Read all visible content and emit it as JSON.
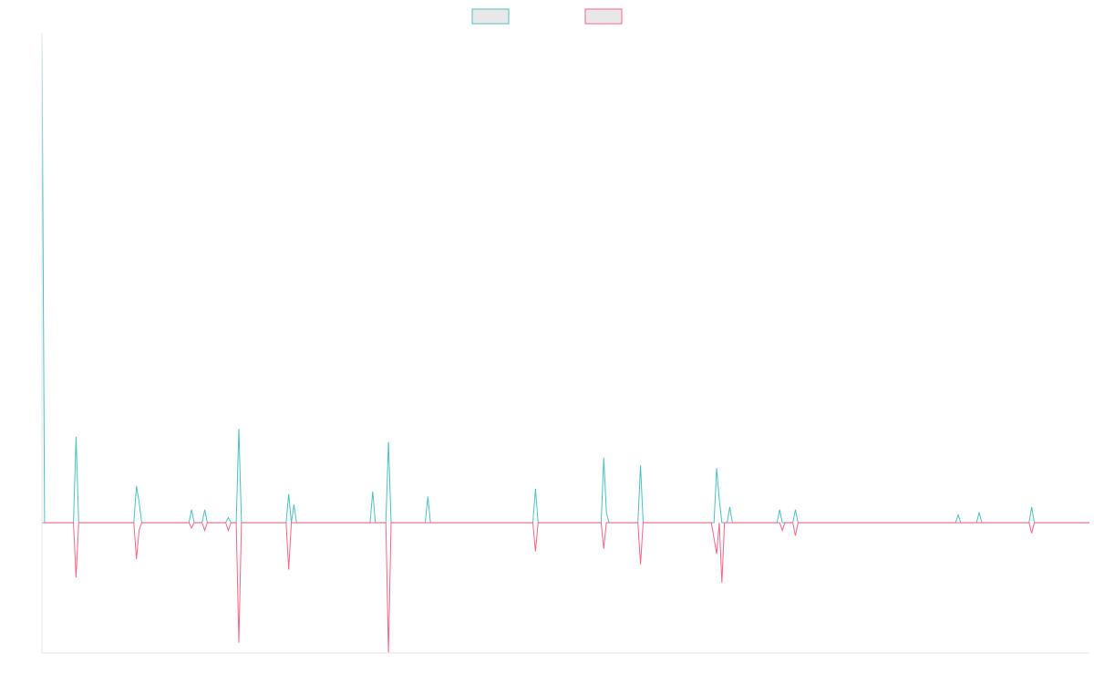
{
  "chart_data": {
    "type": "line",
    "title": "",
    "xlabel": "",
    "ylabel": "",
    "legend_position": "top-center",
    "grid": false,
    "n_points": 400,
    "ylim": [
      -50,
      188
    ],
    "series": [
      {
        "name": "",
        "color": "#4bc0c0",
        "fill": "#e8e8e8",
        "sparse": [
          [
            0,
            188
          ],
          [
            1,
            0
          ],
          [
            13,
            33
          ],
          [
            14,
            0
          ],
          [
            36,
            14
          ],
          [
            37,
            8
          ],
          [
            38,
            0
          ],
          [
            57,
            5
          ],
          [
            58,
            0
          ],
          [
            62,
            5
          ],
          [
            63,
            0
          ],
          [
            71,
            2
          ],
          [
            72,
            0
          ],
          [
            75,
            36
          ],
          [
            76,
            0
          ],
          [
            94,
            11
          ],
          [
            95,
            0
          ],
          [
            96,
            7
          ],
          [
            97,
            0
          ],
          [
            126,
            12
          ],
          [
            127,
            0
          ],
          [
            132,
            31
          ],
          [
            133,
            0
          ],
          [
            147,
            10
          ],
          [
            148,
            0
          ],
          [
            188,
            13
          ],
          [
            189,
            0
          ],
          [
            214,
            25
          ],
          [
            215,
            4
          ],
          [
            216,
            0
          ],
          [
            228,
            22
          ],
          [
            229,
            0
          ],
          [
            257,
            21
          ],
          [
            258,
            9
          ],
          [
            259,
            0
          ],
          [
            262,
            6
          ],
          [
            263,
            0
          ],
          [
            281,
            5
          ],
          [
            282,
            0
          ],
          [
            287,
            5
          ],
          [
            288,
            0
          ],
          [
            349,
            3
          ],
          [
            350,
            0
          ],
          [
            357,
            4
          ],
          [
            358,
            0
          ],
          [
            377,
            6
          ],
          [
            378,
            0
          ]
        ]
      },
      {
        "name": "",
        "color": "#ff6384",
        "fill": "#e8e8e8",
        "sparse": [
          [
            12,
            0
          ],
          [
            13,
            -21
          ],
          [
            14,
            0
          ],
          [
            35,
            0
          ],
          [
            36,
            -14
          ],
          [
            37,
            -3
          ],
          [
            38,
            0
          ],
          [
            56,
            0
          ],
          [
            57,
            -2
          ],
          [
            58,
            0
          ],
          [
            61,
            0
          ],
          [
            62,
            -3
          ],
          [
            63,
            0
          ],
          [
            71,
            -3
          ],
          [
            72,
            0
          ],
          [
            74,
            0
          ],
          [
            75,
            -46
          ],
          [
            76,
            0
          ],
          [
            93,
            0
          ],
          [
            94,
            -18
          ],
          [
            95,
            0
          ],
          [
            131,
            0
          ],
          [
            132,
            -50
          ],
          [
            133,
            0
          ],
          [
            187,
            0
          ],
          [
            188,
            -11
          ],
          [
            189,
            0
          ],
          [
            213,
            0
          ],
          [
            214,
            -10
          ],
          [
            215,
            0
          ],
          [
            228,
            -16
          ],
          [
            229,
            0
          ],
          [
            255,
            0
          ],
          [
            256,
            -6
          ],
          [
            257,
            -12
          ],
          [
            258,
            0
          ],
          [
            259,
            -23
          ],
          [
            260,
            0
          ],
          [
            282,
            -3
          ],
          [
            283,
            0
          ],
          [
            287,
            -5
          ],
          [
            288,
            0
          ],
          [
            376,
            0
          ],
          [
            377,
            -4
          ],
          [
            378,
            0
          ]
        ]
      }
    ]
  }
}
